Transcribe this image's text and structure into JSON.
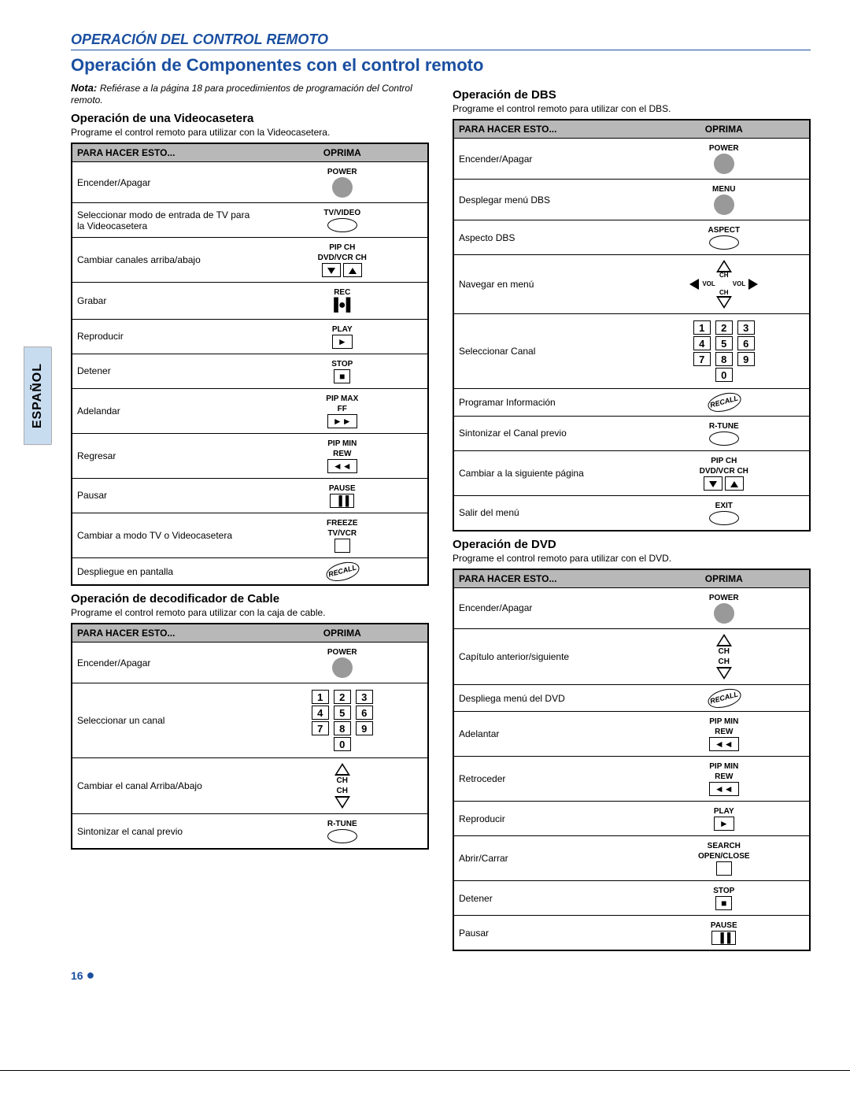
{
  "colors": {
    "accent": "#1a4fa0",
    "tab_bg": "#c8dcf0",
    "th_bg": "#b8b8b8",
    "btn_gray": "#999999"
  },
  "tab_label": "ESPAÑOL",
  "section_header": "OPERACIÓN DEL CONTROL REMOTO",
  "main_title": "Operación de Componentes con el control remoto",
  "note_label": "Nota:",
  "note_text": "Refiérase a la página 18 para procedimientos de programación del Control remoto.",
  "th_action": "PARA HACER ESTO...",
  "th_press": "OPRIMA",
  "page_number": "16",
  "recall_label": "RECALL",
  "vcr": {
    "title": "Operación de una Videocasetera",
    "desc": "Programe el control remoto para utilizar con la Videocasetera.",
    "rows": [
      {
        "label": "Encender/Apagar",
        "btn": "power"
      },
      {
        "label": "Seleccionar modo de entrada de TV para la Videocasetera",
        "btn": "tvvideo"
      },
      {
        "label": "Cambiar canales arriba/abajo",
        "btn": "pipch"
      },
      {
        "label": "Grabar",
        "btn": "rec"
      },
      {
        "label": "Reproducir",
        "btn": "play"
      },
      {
        "label": "Detener",
        "btn": "stop"
      },
      {
        "label": "Adelandar",
        "btn": "ff"
      },
      {
        "label": "Regresar",
        "btn": "rew"
      },
      {
        "label": "Pausar",
        "btn": "pause"
      },
      {
        "label": "Cambiar a modo TV o Videocasetera",
        "btn": "tvvcr"
      },
      {
        "label": "Despliegue en pantalla",
        "btn": "recall"
      }
    ]
  },
  "cable": {
    "title": "Operación de decodificador de Cable",
    "desc": "Programe el control remoto para utilizar con la caja de cable.",
    "rows": [
      {
        "label": "Encender/Apagar",
        "btn": "power"
      },
      {
        "label": "Seleccionar un canal",
        "btn": "keypad"
      },
      {
        "label": "Cambiar el canal Arriba/Abajo",
        "btn": "chupdown"
      },
      {
        "label": "Sintonizar el canal previo",
        "btn": "rtune"
      }
    ]
  },
  "dbs": {
    "title": "Operación de DBS",
    "desc": "Programe el control remoto para utilizar con el DBS.",
    "rows": [
      {
        "label": "Encender/Apagar",
        "btn": "power"
      },
      {
        "label": "Desplegar menú DBS",
        "btn": "menu"
      },
      {
        "label": "Aspecto DBS",
        "btn": "aspect"
      },
      {
        "label": "Navegar en menú",
        "btn": "nav"
      },
      {
        "label": "Seleccionar Canal",
        "btn": "keypad"
      },
      {
        "label": "Programar Información",
        "btn": "recall"
      },
      {
        "label": "Sintonizar el Canal previo",
        "btn": "rtune"
      },
      {
        "label": "Cambiar a la siguiente página",
        "btn": "pipch"
      },
      {
        "label": "Salir del menú",
        "btn": "exit"
      }
    ]
  },
  "dvd": {
    "title": "Operación de DVD",
    "desc": "Programe el control remoto para utilizar con el DVD.",
    "rows": [
      {
        "label": "Encender/Apagar",
        "btn": "power"
      },
      {
        "label": "Capítulo anterior/siguiente",
        "btn": "chupdown"
      },
      {
        "label": "Despliega menú del DVD",
        "btn": "recall"
      },
      {
        "label": "Adelantar",
        "btn": "rew"
      },
      {
        "label": "Retroceder",
        "btn": "rew"
      },
      {
        "label": "Reproducir",
        "btn": "play"
      },
      {
        "label": "Abrir/Carrar",
        "btn": "openclose"
      },
      {
        "label": "Detener",
        "btn": "stop"
      },
      {
        "label": "Pausar",
        "btn": "pause"
      }
    ]
  },
  "btn_labels": {
    "power": "POWER",
    "tvvideo": "TV/VIDEO",
    "pipch1": "PIP CH",
    "pipch2": "DVD/VCR CH",
    "rec": "REC",
    "play": "PLAY",
    "stop": "STOP",
    "ff1": "PIP MAX",
    "ff2": "FF",
    "rew1": "PIP MIN",
    "rew2": "REW",
    "pause": "PAUSE",
    "tvvcr1": "FREEZE",
    "tvvcr2": "TV/VCR",
    "menu": "MENU",
    "aspect": "ASPECT",
    "rtune": "R-TUNE",
    "exit": "EXIT",
    "ch": "CH",
    "vol": "VOL",
    "open1": "SEARCH",
    "open2": "OPEN/CLOSE"
  },
  "keypad_digits": [
    "1",
    "2",
    "3",
    "4",
    "5",
    "6",
    "7",
    "8",
    "9",
    "0"
  ]
}
